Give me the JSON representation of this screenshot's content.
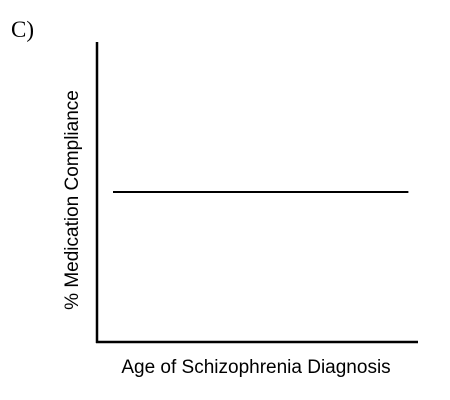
{
  "panel_label": "C)",
  "chart_data": {
    "type": "line",
    "title": "",
    "xlabel": "Age of Schizophrenia Diagnosis",
    "ylabel": "% Medication Compliance",
    "xlim": [
      0,
      1
    ],
    "ylim": [
      0,
      1
    ],
    "grid": false,
    "legend": "none",
    "series": [
      {
        "x": [
          0.05,
          0.97
        ],
        "y": [
          0.5,
          0.5
        ]
      }
    ]
  },
  "colors": {
    "axis": "#000000",
    "line": "#000000"
  }
}
